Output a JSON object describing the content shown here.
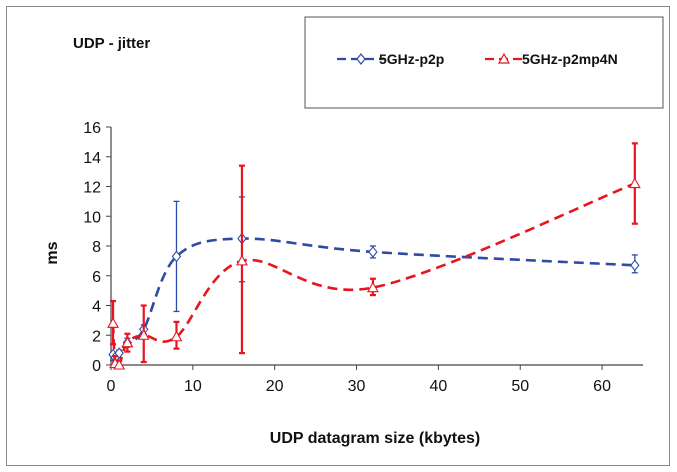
{
  "chart_data": {
    "type": "line",
    "title": "UDP - jitter",
    "xlabel": "UDP datagram size (kbytes)",
    "ylabel": "ms",
    "xlim": [
      0,
      65
    ],
    "ylim": [
      0,
      16
    ],
    "xticks": [
      0,
      10,
      20,
      30,
      40,
      50,
      60
    ],
    "yticks": [
      0,
      2,
      4,
      6,
      8,
      10,
      12,
      14,
      16
    ],
    "grid": false,
    "legend_position": "top-right",
    "series": [
      {
        "name": "5GHz-p2p",
        "color": "#2e4aa8",
        "marker": "diamond",
        "line_style": "dashed",
        "points": [
          {
            "x": 0.25,
            "y": 0.7,
            "err_low": 0.3,
            "err_high": 0.8
          },
          {
            "x": 0.5,
            "y": 0.5,
            "err_low": 0.2,
            "err_high": 0.7
          },
          {
            "x": 1,
            "y": 0.8,
            "err_low": 0.5,
            "err_high": 1.0
          },
          {
            "x": 2,
            "y": 1.5,
            "err_low": 1.2,
            "err_high": 1.8
          },
          {
            "x": 4,
            "y": 2.4,
            "err_low": 2.1,
            "err_high": 2.7
          },
          {
            "x": 8,
            "y": 7.3,
            "err_low": 3.6,
            "err_high": 11.0
          },
          {
            "x": 16,
            "y": 8.5,
            "err_low": 5.6,
            "err_high": 11.3
          },
          {
            "x": 32,
            "y": 7.6,
            "err_low": 7.2,
            "err_high": 8.0
          },
          {
            "x": 64,
            "y": 6.7,
            "err_low": 6.2,
            "err_high": 7.4
          }
        ]
      },
      {
        "name": "5GHz-p2mp4N",
        "color": "#e8141e",
        "marker": "triangle",
        "line_style": "dashed",
        "points": [
          {
            "x": 0.25,
            "y": 2.8,
            "err_low": 1.4,
            "err_high": 4.3
          },
          {
            "x": 0.5,
            "y": 0.1,
            "err_low": 0.0,
            "err_high": 0.6
          },
          {
            "x": 1,
            "y": 0.0,
            "err_low": 0.0,
            "err_high": 0.3
          },
          {
            "x": 2,
            "y": 1.5,
            "err_low": 0.9,
            "err_high": 2.1
          },
          {
            "x": 4,
            "y": 2.0,
            "err_low": 0.2,
            "err_high": 4.0
          },
          {
            "x": 8,
            "y": 1.9,
            "err_low": 1.1,
            "err_high": 2.9
          },
          {
            "x": 16,
            "y": 7.0,
            "err_low": 0.8,
            "err_high": 13.4
          },
          {
            "x": 32,
            "y": 5.2,
            "err_low": 4.7,
            "err_high": 5.8
          },
          {
            "x": 64,
            "y": 12.2,
            "err_low": 9.5,
            "err_high": 14.9
          }
        ]
      }
    ]
  }
}
